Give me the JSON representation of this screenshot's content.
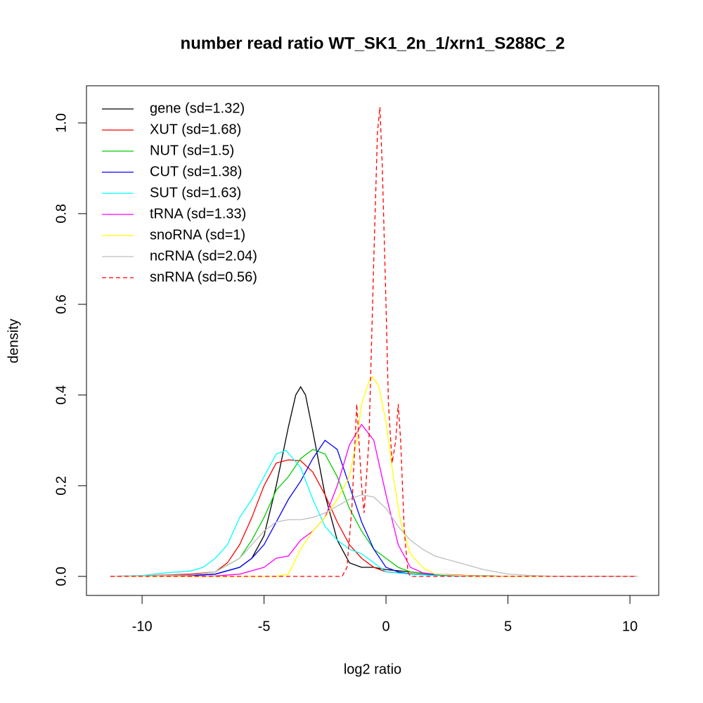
{
  "chart_data": {
    "type": "line",
    "title": "number read ratio WT_SK1_2n_1/xrn1_S288C_2",
    "x_label": "log2 ratio",
    "y_label": "density",
    "xlim": [
      -12.28,
      11.18
    ],
    "ylim": [
      -0.042,
      1.082
    ],
    "xticks": [
      -10,
      -5,
      0,
      5,
      10
    ],
    "yticks": [
      {
        "value": 0,
        "label": "0.0"
      },
      0.2,
      0.4,
      0.6,
      0.8,
      {
        "value": 1,
        "label": "1.0"
      }
    ],
    "legend": "top-left",
    "series": [
      {
        "name": "gene (sd=1.32)",
        "color": "#000000",
        "linestyle": "solid",
        "x": [
          -11.3,
          -8,
          -7,
          -6,
          -5.5,
          -5,
          -4.5,
          -4,
          -3.7,
          -3.5,
          -3.3,
          -3,
          -2.5,
          -2,
          -1.5,
          -1,
          -0.5,
          0,
          1,
          2,
          3,
          5,
          10.3
        ],
        "values": [
          0,
          0.002,
          0.005,
          0.02,
          0.04,
          0.09,
          0.2,
          0.33,
          0.4,
          0.418,
          0.4,
          0.32,
          0.18,
          0.08,
          0.03,
          0.02,
          0.02,
          0.015,
          0.01,
          0.004,
          0.002,
          0,
          0
        ]
      },
      {
        "name": "XUT (sd=1.68)",
        "color": "#ff0000",
        "linestyle": "solid",
        "x": [
          -11.3,
          -9,
          -8,
          -7,
          -6.5,
          -6,
          -5.5,
          -5,
          -4.5,
          -4,
          -3.5,
          -3,
          -2.5,
          -2,
          -1.5,
          -1,
          -0.5,
          0,
          1,
          2,
          3,
          5,
          10.3
        ],
        "values": [
          0,
          0.003,
          0.005,
          0.01,
          0.03,
          0.07,
          0.13,
          0.2,
          0.25,
          0.257,
          0.255,
          0.23,
          0.18,
          0.12,
          0.07,
          0.04,
          0.02,
          0.01,
          0.006,
          0.003,
          0.002,
          0,
          0
        ]
      },
      {
        "name": "NUT (sd=1.5)",
        "color": "#00cd00",
        "linestyle": "solid",
        "x": [
          -11.3,
          -8,
          -7,
          -6,
          -5.5,
          -5,
          -4.5,
          -4,
          -3.5,
          -3,
          -2.5,
          -2,
          -1.5,
          -1,
          -0.5,
          0,
          0.5,
          1,
          2,
          3,
          5,
          10.3
        ],
        "values": [
          0,
          0.003,
          0.01,
          0.04,
          0.08,
          0.13,
          0.19,
          0.22,
          0.26,
          0.28,
          0.27,
          0.22,
          0.15,
          0.1,
          0.06,
          0.04,
          0.02,
          0.01,
          0.004,
          0.002,
          0,
          0
        ]
      },
      {
        "name": "CUT (sd=1.38)",
        "color": "#0000ff",
        "linestyle": "solid",
        "x": [
          -11.3,
          -8,
          -7,
          -6,
          -5.5,
          -5,
          -4.5,
          -4,
          -3.5,
          -3,
          -2.5,
          -2,
          -1.5,
          -1,
          -0.5,
          0,
          0.5,
          1,
          2,
          3,
          5,
          10.3
        ],
        "values": [
          0,
          0.002,
          0.005,
          0.02,
          0.04,
          0.07,
          0.12,
          0.17,
          0.21,
          0.26,
          0.3,
          0.28,
          0.2,
          0.12,
          0.06,
          0.02,
          0.01,
          0.005,
          0.003,
          0.001,
          0,
          0
        ]
      },
      {
        "name": "SUT (sd=1.63)",
        "color": "#00ffff",
        "linestyle": "solid",
        "x": [
          -11.3,
          -10,
          -9,
          -8,
          -7.5,
          -7,
          -6.5,
          -6,
          -5.5,
          -5,
          -4.5,
          -4.1,
          -3.5,
          -3,
          -2.5,
          -2,
          -1.5,
          -1,
          -0.5,
          0,
          1,
          2,
          3,
          10.3
        ],
        "values": [
          0,
          0.002,
          0.008,
          0.012,
          0.02,
          0.04,
          0.07,
          0.13,
          0.17,
          0.22,
          0.27,
          0.278,
          0.24,
          0.17,
          0.11,
          0.08,
          0.06,
          0.05,
          0.03,
          0.01,
          0.005,
          0.002,
          0,
          0
        ]
      },
      {
        "name": "tRNA (sd=1.33)",
        "color": "#ff00ff",
        "linestyle": "solid",
        "x": [
          -11.3,
          -7,
          -6,
          -5,
          -4.5,
          -4,
          -3.5,
          -3,
          -2.5,
          -2,
          -1.5,
          -1,
          -0.5,
          0,
          0.5,
          1,
          1.5,
          2,
          3,
          4,
          10.3
        ],
        "values": [
          0,
          0.001,
          0.005,
          0.02,
          0.04,
          0.045,
          0.08,
          0.1,
          0.13,
          0.2,
          0.29,
          0.335,
          0.3,
          0.18,
          0.07,
          0.02,
          0.008,
          0.005,
          0.003,
          0,
          0
        ]
      },
      {
        "name": "snoRNA (sd=1)",
        "color": "#ffff00",
        "linestyle": "solid",
        "x": [
          -11.3,
          -4.5,
          -4,
          -3.5,
          -3,
          -2.5,
          -2,
          -1.5,
          -1.2,
          -1,
          -0.7,
          -0.55,
          -0.3,
          0,
          0.3,
          0.6,
          1,
          1.5,
          2,
          3,
          4,
          10.3
        ],
        "values": [
          0,
          0,
          0.005,
          0.06,
          0.1,
          0.13,
          0.17,
          0.22,
          0.3,
          0.38,
          0.43,
          0.44,
          0.42,
          0.34,
          0.22,
          0.12,
          0.05,
          0.02,
          0.005,
          0.002,
          0,
          0
        ]
      },
      {
        "name": "ncRNA (sd=2.04)",
        "color": "#bebebe",
        "linestyle": "solid",
        "x": [
          -11.3,
          -8,
          -7,
          -6,
          -5.5,
          -5,
          -4.5,
          -4,
          -3.5,
          -3,
          -2.5,
          -2,
          -1.5,
          -1,
          -0.5,
          0,
          0.5,
          1,
          1.5,
          2,
          3,
          4,
          5,
          6,
          7,
          10.3
        ],
        "values": [
          0,
          0.003,
          0.01,
          0.04,
          0.07,
          0.1,
          0.12,
          0.125,
          0.125,
          0.13,
          0.14,
          0.155,
          0.17,
          0.18,
          0.175,
          0.15,
          0.11,
          0.08,
          0.06,
          0.045,
          0.03,
          0.015,
          0.005,
          0.002,
          0,
          0
        ]
      },
      {
        "name": "snRNA (sd=0.56)",
        "color": "#ff0000",
        "linestyle": "dashed",
        "x": [
          -11.3,
          -1.8,
          -1.6,
          -1.4,
          -1.2,
          -1,
          -0.9,
          -0.7,
          -0.5,
          -0.35,
          -0.25,
          -0.15,
          0,
          0.1,
          0.25,
          0.4,
          0.5,
          0.6,
          0.75,
          0.9,
          1,
          10.3
        ],
        "values": [
          0,
          0,
          0.02,
          0.15,
          0.38,
          0.2,
          0.14,
          0.3,
          0.7,
          0.98,
          1.035,
          0.9,
          0.6,
          0.38,
          0.25,
          0.3,
          0.38,
          0.3,
          0.1,
          0.01,
          0,
          0
        ]
      }
    ]
  }
}
